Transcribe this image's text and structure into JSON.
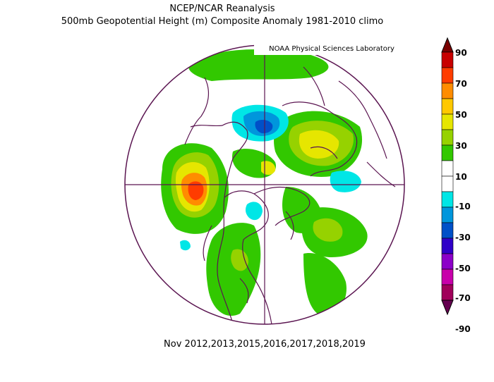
{
  "header": {
    "line1": "NCEP/NCAR Reanalysis",
    "line2": "500mb Geopotential Height (m) Composite Anomaly 1981-2010 climo"
  },
  "credit": "NOAA Physical Sciences Laboratory",
  "footer": {
    "dates": "Nov 2012,2013,2015,2016,2017,2018,2019"
  },
  "colorbar": {
    "labels": [
      "90",
      "70",
      "50",
      "30",
      "10",
      "-10",
      "-30",
      "-50",
      "-70",
      "-90"
    ],
    "colors": [
      "#7a0000",
      "#c80000",
      "#ff3c00",
      "#ff8c00",
      "#ffc800",
      "#e6e600",
      "#96d200",
      "#32c800",
      "#ffffff",
      "#ffffff",
      "#00e6e6",
      "#0096dc",
      "#0050c8",
      "#3000c8",
      "#8c00c8",
      "#c800aa",
      "#a0005a",
      "#640050"
    ]
  },
  "map": {
    "projection": "north-polar-stereographic",
    "anomaly_colors": {
      "pos_10_30": "#32c800",
      "pos_30_50": "#96d200",
      "pos_50_70": "#e6e600",
      "pos_70_90": "#ff8c00",
      "pos_90": "#ff3c00",
      "neg_10_30": "#00e6e6",
      "neg_30_50": "#0096dc",
      "neg_50_70": "#0050c8"
    }
  }
}
